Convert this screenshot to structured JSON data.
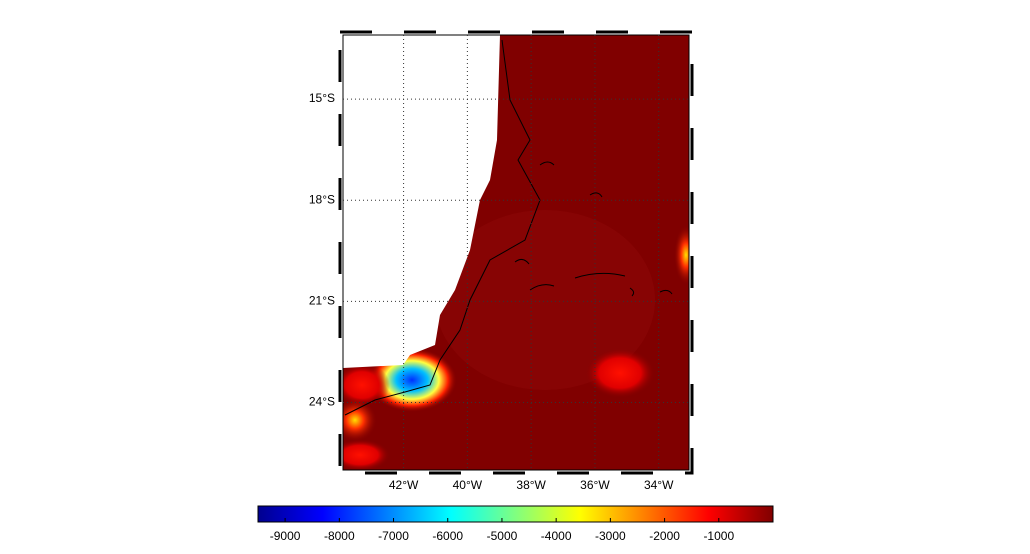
{
  "map": {
    "lonlim": [
      -43.9,
      -33.05
    ],
    "latlim": [
      -26,
      -13.1
    ],
    "lonticks": [
      {
        "value": -42,
        "label": "42°W"
      },
      {
        "value": -40,
        "label": "40°W"
      },
      {
        "value": -38,
        "label": "38°W"
      },
      {
        "value": -36,
        "label": "36°W"
      },
      {
        "value": -34,
        "label": "34°W"
      }
    ],
    "latticks": [
      {
        "value": -15,
        "label": "15°S"
      },
      {
        "value": -18,
        "label": "18°S"
      },
      {
        "value": -21,
        "label": "21°S"
      },
      {
        "value": -24,
        "label": "24°S"
      }
    ],
    "grid": true
  },
  "colorbar": {
    "clim": [
      -9500,
      0
    ],
    "ticks": [
      -9000,
      -8000,
      -7000,
      -6000,
      -5000,
      -4000,
      -3000,
      -2000,
      -1000
    ]
  }
}
